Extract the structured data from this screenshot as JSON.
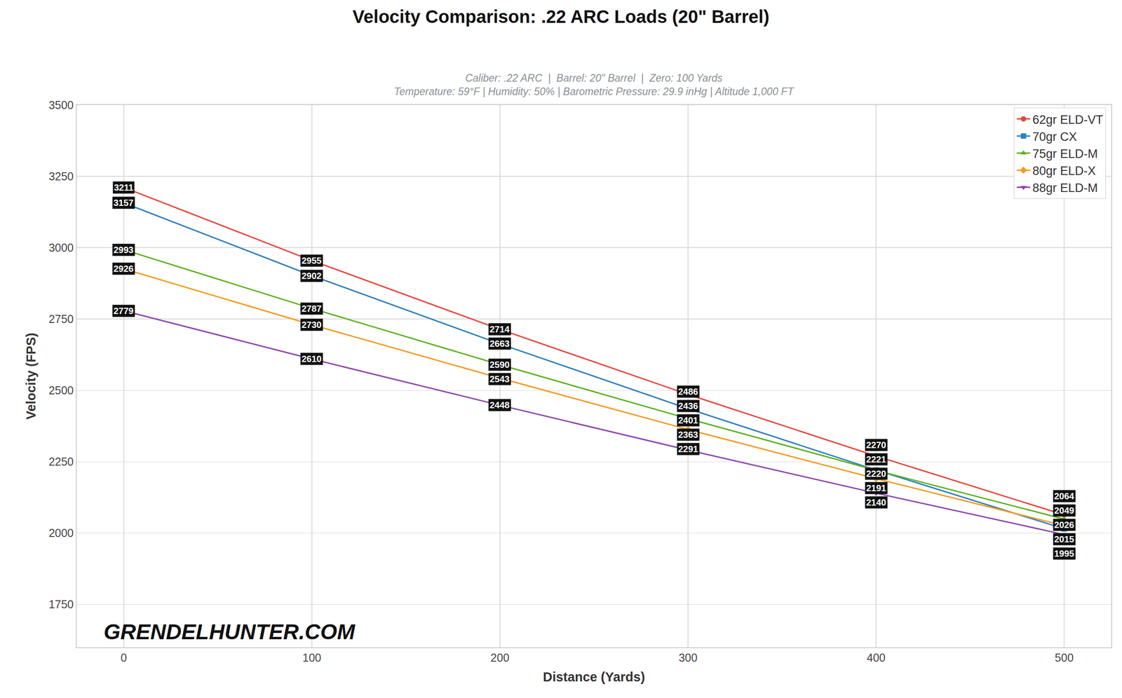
{
  "chart_data": {
    "type": "line",
    "title": "Velocity Comparison: .22 ARC Loads (20\" Barrel)",
    "subtitle": [
      "Caliber: .22 ARC  |  Barrel: 20\" Barrel  |  Zero: 100 Yards",
      "Temperature: 59°F | Humidity: 50% | Barometric Pressure: 29.9 inHg | Altitude 1,000 FT"
    ],
    "x_label": "Distance (Yards)",
    "y_label": "Velocity (FPS)",
    "x": [
      0,
      100,
      200,
      300,
      400,
      500
    ],
    "series": [
      {
        "name": "62gr ELD-VT",
        "color": "#e8453c",
        "marker": "circle",
        "values": [
          3211,
          2955,
          2714,
          2486,
          2270,
          2064
        ]
      },
      {
        "name": "70gr CX",
        "color": "#2e7fc0",
        "marker": "square",
        "values": [
          3157,
          2902,
          2663,
          2436,
          2221,
          2015
        ]
      },
      {
        "name": "75gr ELD-M",
        "color": "#5ab21e",
        "marker": "triangle-up",
        "values": [
          2993,
          2787,
          2590,
          2401,
          2220,
          2049
        ]
      },
      {
        "name": "80gr ELD-X",
        "color": "#f59a1e",
        "marker": "diamond",
        "values": [
          2926,
          2730,
          2543,
          2363,
          2191,
          2026
        ]
      },
      {
        "name": "88gr ELD-M",
        "color": "#8e44ad",
        "marker": "triangle-down",
        "values": [
          2779,
          2610,
          2448,
          2291,
          2140,
          1995
        ]
      }
    ],
    "xlim": [
      -25,
      525
    ],
    "xticks": [
      0,
      100,
      200,
      300,
      400,
      500
    ],
    "ylim": [
      1600,
      3500
    ],
    "yticks": [
      1750,
      2000,
      2250,
      2500,
      2750,
      3000,
      3250,
      3500
    ],
    "grid": true,
    "legend": "upper right",
    "data_labels": true,
    "annotations": [
      {
        "text": "GRENDELHUNTER.COM"
      }
    ]
  }
}
